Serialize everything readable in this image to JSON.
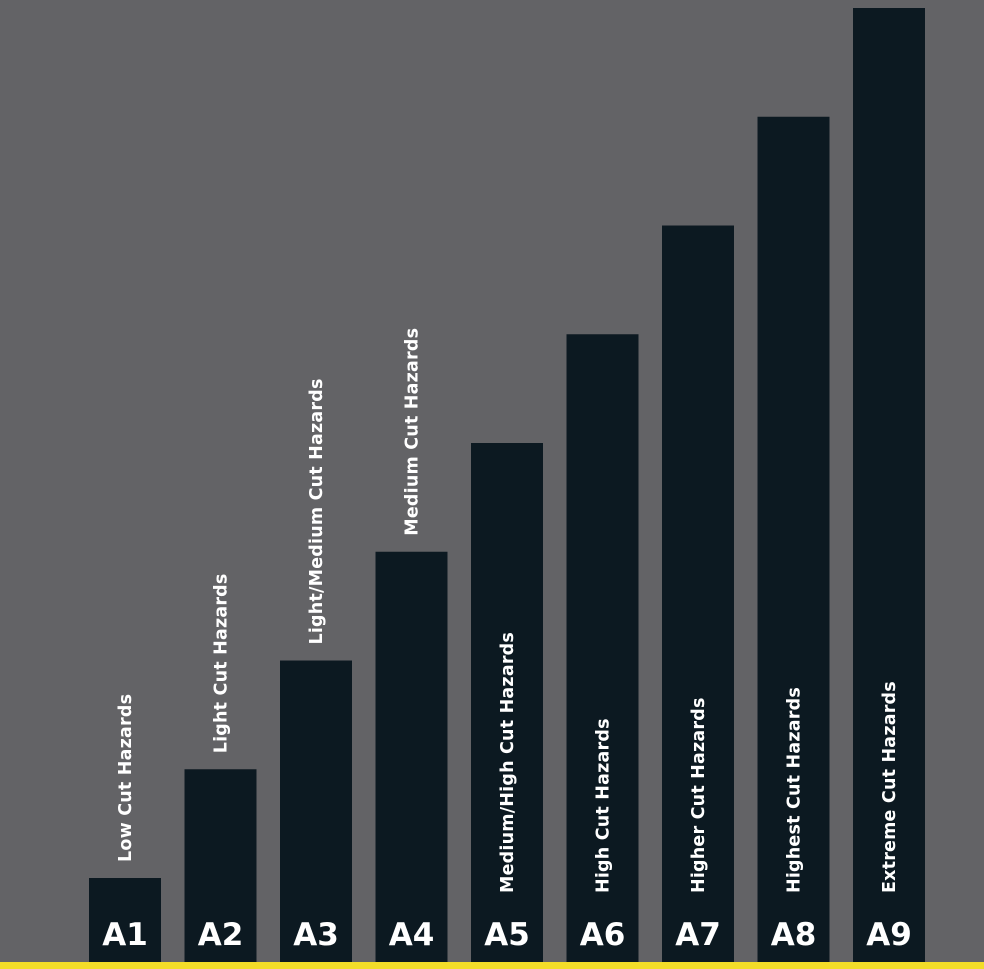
{
  "colors": {
    "background": "#636366",
    "bar": "#0c1921",
    "baseline": "#f3dd29",
    "text": "#ffffff"
  },
  "chart_data": {
    "type": "bar",
    "categories": [
      "A1",
      "A2",
      "A3",
      "A4",
      "A5",
      "A6",
      "A7",
      "A8",
      "A9"
    ],
    "values": [
      1,
      2,
      3,
      4,
      5,
      6,
      7,
      8,
      9
    ],
    "bar_labels": [
      "Low Cut Hazards",
      "Light Cut Hazards",
      "Light/Medium Cut Hazards",
      "Medium Cut Hazards",
      "Medium/High Cut Hazards",
      "High Cut Hazards",
      "Higher Cut Hazards",
      "Highest Cut Hazards",
      "Extreme Cut Hazards"
    ],
    "title": "",
    "xlabel": "",
    "ylabel": "",
    "grid": false,
    "legend": "none"
  }
}
